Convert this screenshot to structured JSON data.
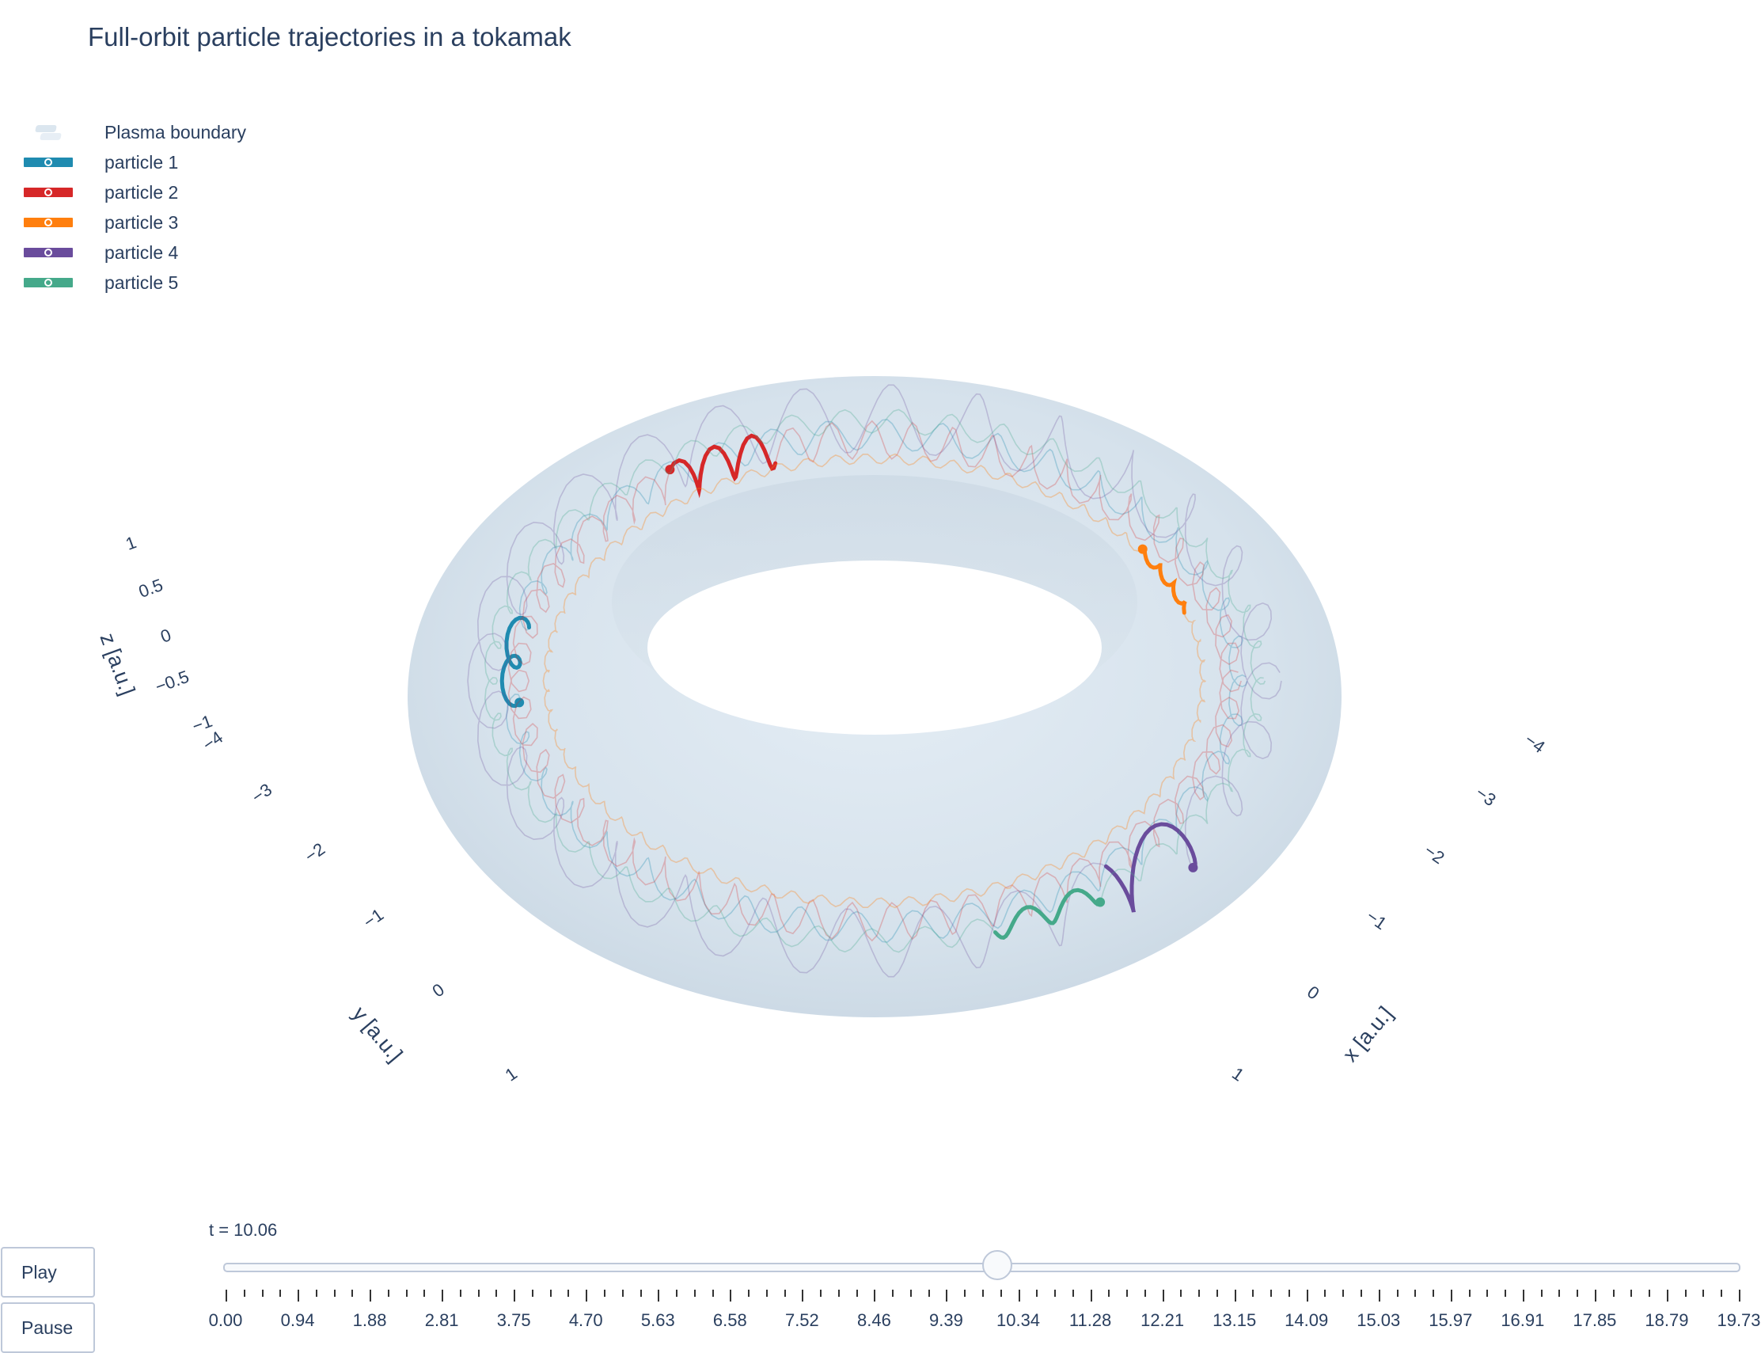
{
  "title": "Full-orbit particle trajectories in a tokamak",
  "legend": [
    {
      "name": "Plasma boundary",
      "color": "#d6e2ec"
    },
    {
      "name": "particle 1",
      "color": "#1f8bb0"
    },
    {
      "name": "particle 2",
      "color": "#d62728"
    },
    {
      "name": "particle 3",
      "color": "#ff7f0e"
    },
    {
      "name": "particle 4",
      "color": "#6a4c9c"
    },
    {
      "name": "particle 5",
      "color": "#45a98a"
    }
  ],
  "chart_data": {
    "type": "scatter3d",
    "title": "Full-orbit particle trajectories in a tokamak",
    "axes": {
      "x": {
        "label": "x [a.u.]",
        "ticks": [
          "−4",
          "−3",
          "−2",
          "−1",
          "0",
          "1"
        ]
      },
      "y": {
        "label": "y [a.u.]",
        "ticks": [
          "−4",
          "−3",
          "−2",
          "−1",
          "0",
          "1"
        ]
      },
      "z": {
        "label": "z [a.u.]",
        "ticks": [
          "−1",
          "−0.5",
          "0",
          "0.5",
          "1"
        ]
      }
    },
    "boundary": {
      "name": "Plasma boundary",
      "major_radius": 3,
      "minor_radius": 1
    },
    "particles": [
      {
        "name": "particle 1",
        "color": "#1f8bb0",
        "current_angle_deg": 178
      },
      {
        "name": "particle 2",
        "color": "#d62728",
        "current_angle_deg": 118
      },
      {
        "name": "particle 3",
        "color": "#ff7f0e",
        "current_angle_deg": 30
      },
      {
        "name": "particle 4",
        "color": "#6a4c9c",
        "current_angle_deg": -42
      },
      {
        "name": "particle 5",
        "color": "#45a98a",
        "current_angle_deg": -60
      }
    ],
    "grid": true,
    "legend_position": "top-left"
  },
  "slider": {
    "current_label": "t = 10.06",
    "current_value": 10.06,
    "min": 0.0,
    "max": 19.73,
    "tick_labels": [
      "0.00",
      "0.94",
      "1.88",
      "2.81",
      "3.75",
      "4.70",
      "5.63",
      "6.58",
      "7.52",
      "8.46",
      "9.39",
      "10.34",
      "11.28",
      "12.21",
      "13.15",
      "14.09",
      "15.03",
      "15.97",
      "16.91",
      "17.85",
      "18.79",
      "19.73"
    ]
  },
  "buttons": {
    "play": "Play",
    "pause": "Pause"
  }
}
